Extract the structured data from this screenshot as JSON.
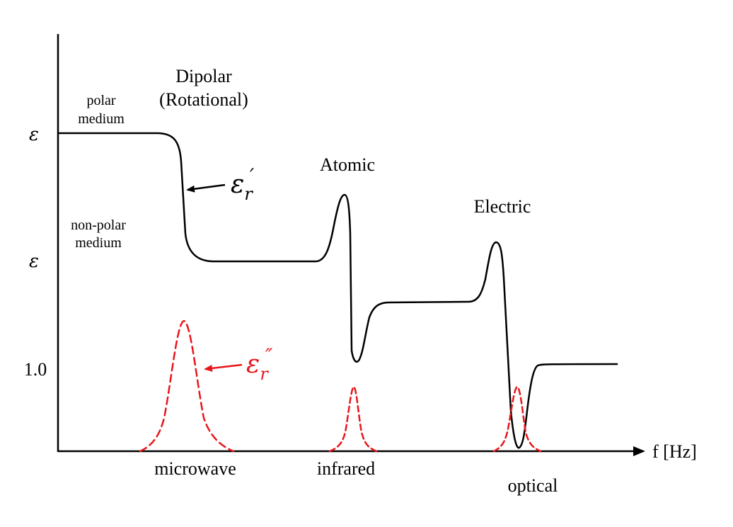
{
  "labels": {
    "dipolar_line1": "Dipolar",
    "dipolar_line2": "(Rotational)",
    "atomic": "Atomic",
    "electric": "Electric",
    "polar_line1": "polar",
    "polar_line2": "medium",
    "nonpolar_line1": "non-polar",
    "nonpolar_line2": "medium",
    "eps_real_base": "ε",
    "eps_real_sub": "r",
    "eps_real_mark": "′",
    "eps_imag_base": "ε",
    "eps_imag_sub": "r",
    "eps_imag_mark": "″"
  },
  "y_axis": {
    "tick_high": "ε",
    "tick_mid": "ε",
    "tick_one": "1.0"
  },
  "x_axis": {
    "label": "f [Hz]",
    "band_microwave": "microwave",
    "band_infrared": "infrared",
    "band_optical": "optical"
  },
  "colors": {
    "real_curve": "#000000",
    "imag_curve": "#e8161b",
    "axes": "#000000"
  }
}
